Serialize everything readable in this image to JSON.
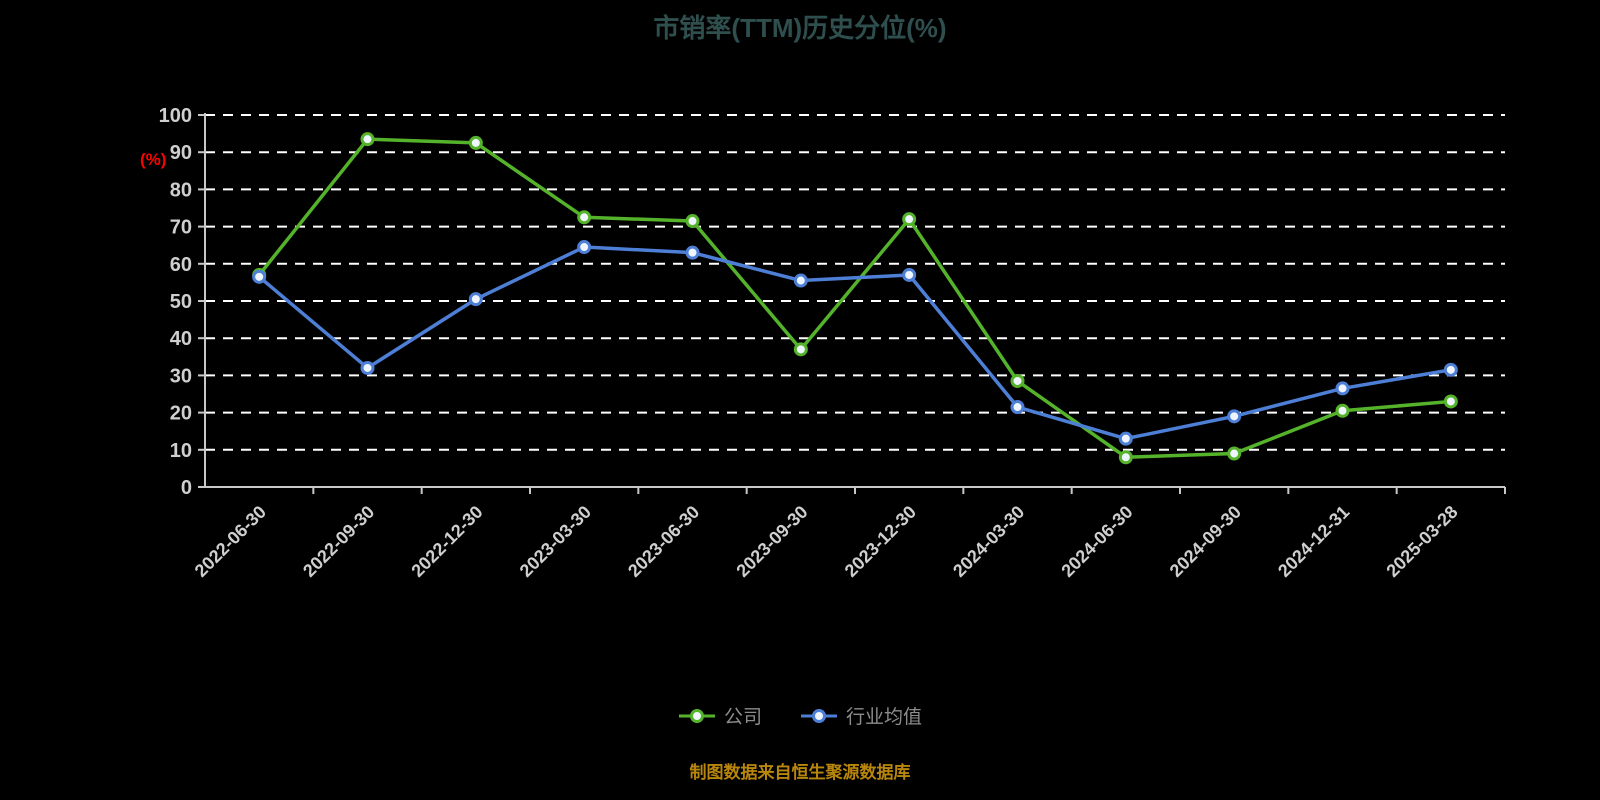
{
  "source_note": "制图数据来自恒生聚源数据库",
  "colors": {
    "background": "#000000",
    "title": "#2f4f4f",
    "axis": "#c8c8c8",
    "tick_label": "#cfcfcf",
    "grid": "#ffffff",
    "ylabel": "#ff0000",
    "source_note": "#b8860b",
    "legend_label": "#8c8c8c",
    "marker_fill": "#eef5ff"
  },
  "chart_data": {
    "type": "line",
    "title": "市销率(TTM)历史分位(%)",
    "xlabel": "",
    "ylabel": "(%)",
    "ylim": [
      0,
      100
    ],
    "ytick_step": 10,
    "grid": "horizontal-dashed-white",
    "legend_position": "bottom",
    "categories": [
      "2022-06-30",
      "2022-09-30",
      "2022-12-30",
      "2023-03-30",
      "2023-06-30",
      "2023-09-30",
      "2023-12-30",
      "2024-03-30",
      "2024-06-30",
      "2024-09-30",
      "2024-12-31",
      "2025-03-28"
    ],
    "series": [
      {
        "name": "公司",
        "color": "#54b32a",
        "values": [
          57,
          93.5,
          92.5,
          72.5,
          71.5,
          37,
          72,
          28.5,
          8,
          9,
          20.5,
          23
        ]
      },
      {
        "name": "行业均值",
        "color": "#4e7fd6",
        "values": [
          56.5,
          32,
          50.5,
          64.5,
          63,
          55.5,
          57,
          21.5,
          13,
          19,
          26.5,
          31.5
        ]
      }
    ]
  }
}
